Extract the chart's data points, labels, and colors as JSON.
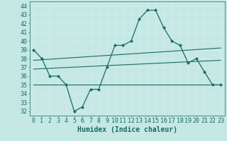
{
  "xlabel": "Humidex (Indice chaleur)",
  "background_color": "#c5e8e5",
  "grid_color": "#d4eeec",
  "line_color": "#1a6b60",
  "xlim": [
    -0.5,
    23.5
  ],
  "ylim": [
    31.5,
    44.5
  ],
  "yticks": [
    32,
    33,
    34,
    35,
    36,
    37,
    38,
    39,
    40,
    41,
    42,
    43,
    44
  ],
  "xticks": [
    0,
    1,
    2,
    3,
    4,
    5,
    6,
    7,
    8,
    9,
    10,
    11,
    12,
    13,
    14,
    15,
    16,
    17,
    18,
    19,
    20,
    21,
    22,
    23
  ],
  "main_series": {
    "x": [
      0,
      1,
      2,
      3,
      4,
      5,
      6,
      7,
      8,
      9,
      10,
      11,
      12,
      13,
      14,
      15,
      16,
      17,
      18,
      19,
      20,
      21,
      22,
      23
    ],
    "y": [
      39,
      38,
      36,
      36,
      35,
      32,
      32.5,
      34.5,
      34.5,
      37,
      39.5,
      39.5,
      40,
      42.5,
      43.5,
      43.5,
      41.5,
      40,
      39.5,
      37.5,
      38,
      36.5,
      35,
      35
    ]
  },
  "trend_lines": [
    {
      "x0": 0,
      "y0": 35.0,
      "x1": 23,
      "y1": 35.0
    },
    {
      "x0": 0,
      "y0": 36.8,
      "x1": 23,
      "y1": 37.8
    },
    {
      "x0": 0,
      "y0": 37.8,
      "x1": 23,
      "y1": 39.2
    }
  ],
  "font_color": "#1a6b60",
  "tick_fontsize": 6,
  "xlabel_fontsize": 7
}
